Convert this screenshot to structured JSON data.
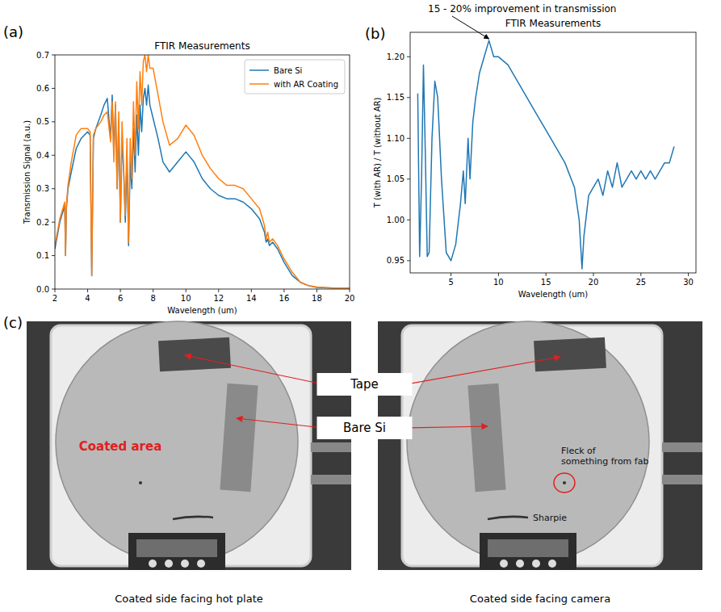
{
  "chart_data": [
    {
      "type": "line",
      "panel": "(a)",
      "title": "FTIR Measurements",
      "x_label": "Wavelength (um)",
      "y_label": "Transmission Signal (a.u.)",
      "legend": "upper right",
      "xlim": [
        2,
        20
      ],
      "xticks": [
        2,
        4,
        6,
        8,
        10,
        12,
        14,
        16,
        18,
        20
      ],
      "ylim": [
        0,
        0.7
      ],
      "yticks": [
        {
          "value": 0,
          "label": "0.0"
        },
        0.1,
        0.2,
        0.3,
        0.4,
        0.5,
        0.6,
        0.7
      ],
      "x": [
        2.0,
        2.3,
        2.6,
        2.65,
        2.7,
        2.8,
        3.0,
        3.3,
        3.6,
        4.0,
        4.15,
        4.25,
        4.35,
        4.5,
        4.8,
        5.0,
        5.2,
        5.4,
        5.5,
        5.6,
        5.7,
        5.8,
        5.9,
        6.0,
        6.1,
        6.2,
        6.3,
        6.4,
        6.5,
        6.6,
        6.7,
        6.8,
        6.9,
        7.0,
        7.1,
        7.2,
        7.3,
        7.4,
        7.5,
        7.6,
        7.7,
        7.8,
        8.0,
        8.3,
        8.6,
        9.0,
        9.5,
        10.0,
        10.5,
        11.0,
        11.5,
        12.0,
        12.5,
        13.0,
        13.5,
        14.0,
        14.5,
        14.8,
        14.9,
        15.0,
        15.1,
        15.3,
        15.6,
        16.0,
        16.5,
        17.0,
        17.5,
        18.0,
        19.0,
        20.0
      ],
      "series": [
        {
          "name": "Bare Si",
          "color": "#1f77b4",
          "values": [
            0.12,
            0.2,
            0.25,
            0.1,
            0.24,
            0.3,
            0.35,
            0.42,
            0.45,
            0.47,
            0.46,
            0.04,
            0.45,
            0.48,
            0.52,
            0.55,
            0.57,
            0.45,
            0.58,
            0.4,
            0.55,
            0.3,
            0.5,
            0.2,
            0.45,
            0.35,
            0.2,
            0.4,
            0.13,
            0.38,
            0.3,
            0.48,
            0.35,
            0.52,
            0.4,
            0.55,
            0.47,
            0.57,
            0.6,
            0.55,
            0.61,
            0.55,
            0.51,
            0.45,
            0.38,
            0.35,
            0.38,
            0.41,
            0.38,
            0.33,
            0.3,
            0.28,
            0.27,
            0.27,
            0.26,
            0.24,
            0.21,
            0.17,
            0.14,
            0.15,
            0.13,
            0.14,
            0.12,
            0.08,
            0.04,
            0.02,
            0.01,
            0.005,
            0.003,
            0.003
          ]
        },
        {
          "name": "with AR Coating",
          "color": "#ff7f0e",
          "values": [
            0.13,
            0.21,
            0.26,
            0.1,
            0.25,
            0.31,
            0.38,
            0.46,
            0.48,
            0.48,
            0.47,
            0.04,
            0.46,
            0.48,
            0.5,
            0.52,
            0.53,
            0.44,
            0.56,
            0.38,
            0.56,
            0.3,
            0.53,
            0.2,
            0.5,
            0.36,
            0.22,
            0.45,
            0.14,
            0.45,
            0.33,
            0.56,
            0.4,
            0.62,
            0.48,
            0.65,
            0.55,
            0.68,
            0.7,
            0.65,
            0.7,
            0.66,
            0.66,
            0.58,
            0.5,
            0.43,
            0.45,
            0.49,
            0.46,
            0.4,
            0.36,
            0.33,
            0.31,
            0.31,
            0.3,
            0.27,
            0.24,
            0.19,
            0.15,
            0.17,
            0.14,
            0.15,
            0.13,
            0.09,
            0.05,
            0.02,
            0.01,
            0.006,
            0.003,
            0.003
          ]
        }
      ]
    },
    {
      "type": "line",
      "panel": "(b)",
      "title": "FTIR Measurements",
      "x_label": "Wavelength (um)",
      "y_label": "T (with AR) / T (without AR)",
      "annotation": {
        "text": "15 - 20% improvement in transmission",
        "x": 9.0,
        "y": 1.22
      },
      "xlim": [
        0.7,
        30.8
      ],
      "xticks": [
        5,
        10,
        15,
        20,
        25,
        30
      ],
      "ylim": [
        0.935,
        1.23
      ],
      "yticks": [
        0.95,
        {
          "value": 1.0,
          "label": "1.00"
        },
        1.05,
        {
          "value": 1.1,
          "label": "1.10"
        },
        1.15,
        {
          "value": 1.2,
          "label": "1.20"
        }
      ],
      "x": [
        1.5,
        1.7,
        1.9,
        2.1,
        2.3,
        2.5,
        2.7,
        3.0,
        3.3,
        3.6,
        4.0,
        4.5,
        5.0,
        5.5,
        6.0,
        6.3,
        6.5,
        6.8,
        7.0,
        7.3,
        7.6,
        8.0,
        8.5,
        9.0,
        9.5,
        10,
        11,
        12,
        13,
        14,
        15,
        16,
        17,
        18,
        18.5,
        18.8,
        19.0,
        19.5,
        20,
        20.5,
        21,
        21.5,
        22,
        22.5,
        23,
        23.5,
        24,
        24.5,
        25,
        25.5,
        26,
        26.5,
        27,
        27.5,
        28,
        28.5
      ],
      "series": [
        {
          "color": "#1f77b4",
          "values": [
            1.155,
            0.955,
            1.05,
            1.19,
            1.08,
            0.955,
            0.96,
            1.1,
            1.17,
            1.15,
            1.05,
            0.96,
            0.95,
            0.97,
            1.02,
            1.06,
            1.02,
            1.1,
            1.05,
            1.12,
            1.15,
            1.18,
            1.2,
            1.22,
            1.2,
            1.2,
            1.19,
            1.17,
            1.15,
            1.13,
            1.11,
            1.09,
            1.07,
            1.04,
            1.0,
            0.94,
            0.98,
            1.03,
            1.04,
            1.05,
            1.03,
            1.06,
            1.04,
            1.07,
            1.04,
            1.05,
            1.06,
            1.05,
            1.06,
            1.05,
            1.06,
            1.05,
            1.06,
            1.07,
            1.07,
            1.09
          ]
        }
      ]
    }
  ],
  "photos": {
    "panel": "(c)",
    "callouts": [
      "Tape",
      "Bare Si"
    ],
    "images": [
      {
        "caption": "Coated side facing hot plate",
        "labels": [
          "Coated area"
        ]
      },
      {
        "caption": "Coated side facing camera",
        "labels": [
          "Fleck of something from fab",
          "Sharpie"
        ]
      }
    ]
  }
}
